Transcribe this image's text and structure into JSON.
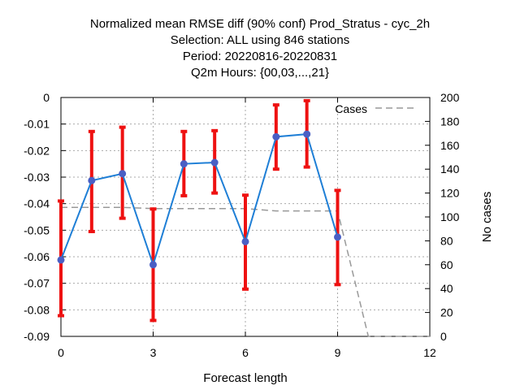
{
  "titles": [
    "Normalized mean RMSE diff (90% conf) Prod_Stratus - cyc_2h",
    "Selection: ALL using   846 stations",
    "Period: 20220816-20220831",
    "Q2m   Hours: {00,03,...,21}"
  ],
  "chart_data": {
    "type": "line",
    "title": "Normalized mean RMSE diff (90% conf) Prod_Stratus - cyc_2h",
    "xlabel": "Forecast length",
    "ylabel": "",
    "y2label": "No cases",
    "xlim": [
      0,
      12
    ],
    "ylim": [
      -0.09,
      0
    ],
    "y2lim": [
      0,
      200
    ],
    "xticks": [
      0,
      3,
      6,
      9,
      12
    ],
    "yticks": [
      0,
      -0.01,
      -0.02,
      -0.03,
      -0.04,
      -0.05,
      -0.06,
      -0.07,
      -0.08,
      -0.09
    ],
    "y2ticks": [
      0,
      20,
      40,
      60,
      80,
      100,
      120,
      140,
      160,
      180,
      200
    ],
    "grid": true,
    "legend_position": "top-right",
    "colors": {
      "line": "#1f7fd6",
      "marker": "#4a5fc4",
      "errorbar": "#ee1111",
      "cases": "#999999"
    },
    "series": [
      {
        "x": [
          0,
          1,
          2,
          3,
          4,
          5,
          6,
          7,
          8,
          9
        ],
        "y": [
          -0.0612,
          -0.0313,
          -0.0287,
          -0.063,
          -0.025,
          -0.0245,
          -0.0543,
          -0.0148,
          -0.0138,
          -0.0526
        ],
        "err_low": [
          -0.0822,
          -0.0505,
          -0.0455,
          -0.084,
          -0.037,
          -0.036,
          -0.0722,
          -0.027,
          -0.0262,
          -0.0705
        ],
        "err_high": [
          -0.039,
          -0.0128,
          -0.0112,
          -0.042,
          -0.0128,
          -0.0125,
          -0.0368,
          -0.0028,
          -0.0012,
          -0.035
        ]
      },
      {
        "name": "Cases",
        "axis": "y2",
        "x": [
          0,
          1,
          2,
          3,
          4,
          5,
          6,
          7,
          8,
          9,
          10,
          11,
          12
        ],
        "y": [
          108,
          108,
          108,
          107,
          107,
          107,
          107,
          105,
          105,
          105,
          0,
          0,
          0
        ]
      }
    ]
  }
}
